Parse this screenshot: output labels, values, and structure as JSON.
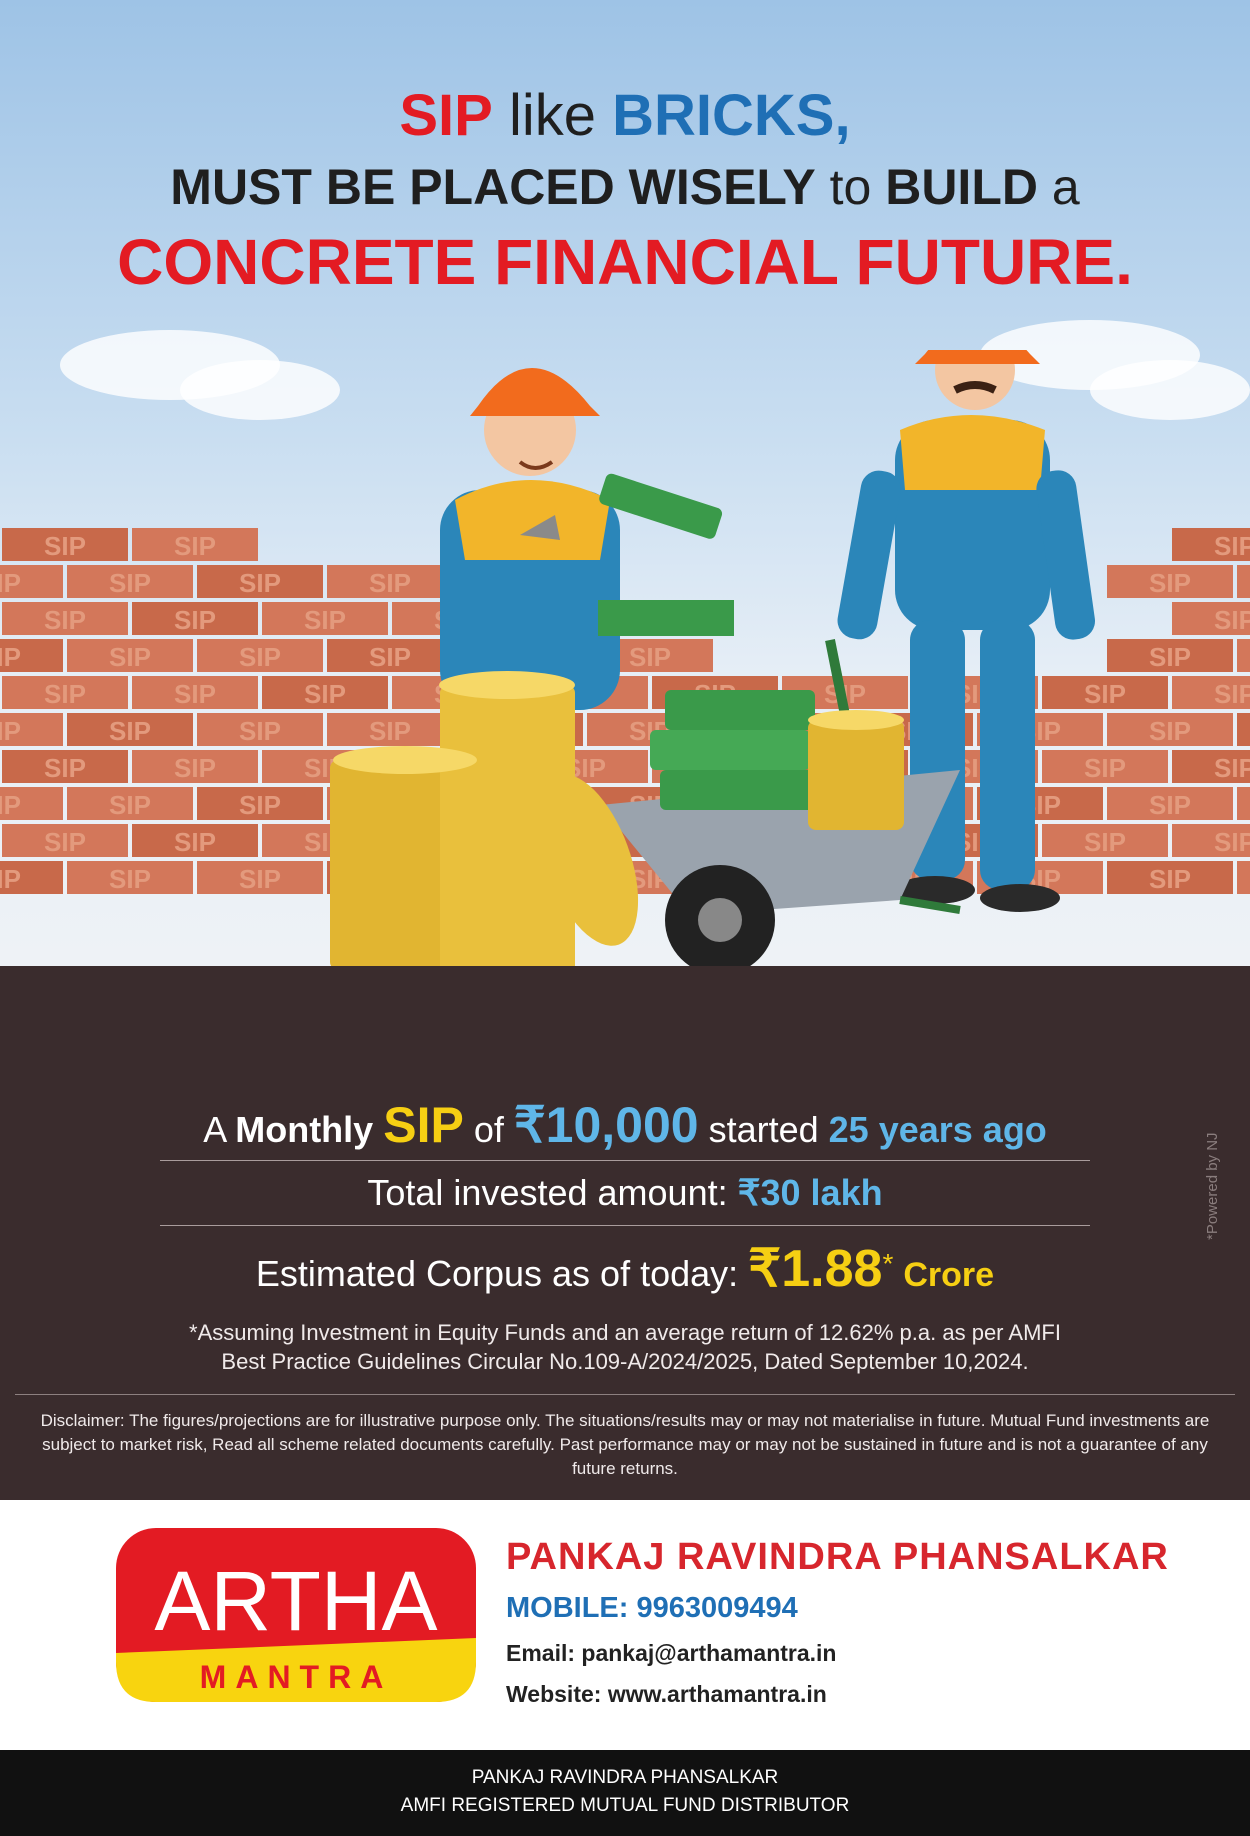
{
  "headline": {
    "l1_a": "SIP",
    "l1_b": " like ",
    "l1_c": "BRICKS,",
    "l2_a": "MUST BE PLACED WISELY",
    "l2_b": " to ",
    "l2_c": "BUILD",
    "l2_d": " a",
    "l3": "CONCRETE FINANCIAL FUTURE."
  },
  "brick_text": "SIP",
  "sip_info": {
    "a": "A ",
    "monthly": "Monthly",
    "sip": "SIP",
    "of": " of ",
    "amount": "₹10,000",
    "started": " started ",
    "years": "25 years ago",
    "invested_label": "Total invested amount: ",
    "invested_value": "₹30 lakh",
    "corpus_label": "Estimated Corpus as of today: ",
    "corpus_value": "₹1.88",
    "corpus_star": "*",
    "corpus_unit": "Crore"
  },
  "assumption_line1": "*Assuming Investment in Equity Funds and an average return of 12.62% p.a. as per AMFI",
  "assumption_line2": "Best Practice  Guidelines Circular No.109-A/2024/2025, Dated September 10,2024.",
  "disclaimer": "Disclaimer: The figures/projections are for illustrative purpose only. The situations/results may or may not materialise in future. Mutual Fund investments are subject to market risk, Read all scheme related documents carefully. Past performance may or may not be sustained in future and is not a guarantee of any future returns.",
  "powered_by": "*Powered by NJ",
  "logo": {
    "top": "ARTHA",
    "bottom": "MANTRA"
  },
  "contact": {
    "name": "PANKAJ RAVINDRA PHANSALKAR",
    "mobile": "MOBILE: 9963009494",
    "email": "Email: pankaj@arthamantra.in",
    "website": "Website: www.arthamantra.in"
  },
  "footer": {
    "line1": "PANKAJ RAVINDRA PHANSALKAR",
    "line2": "AMFI REGISTERED MUTUAL FUND DISTRIBUTOR"
  },
  "colors": {
    "red": "#e31b23",
    "blue": "#1f6fb5",
    "gold": "#f6cf13",
    "cyan": "#5fb6e8",
    "ground": "#3a2c2d"
  },
  "icons": [
    "worker-left-illustration",
    "worker-right-illustration",
    "coin-stack-icon",
    "cash-bundle-icon",
    "wheelbarrow-icon"
  ]
}
